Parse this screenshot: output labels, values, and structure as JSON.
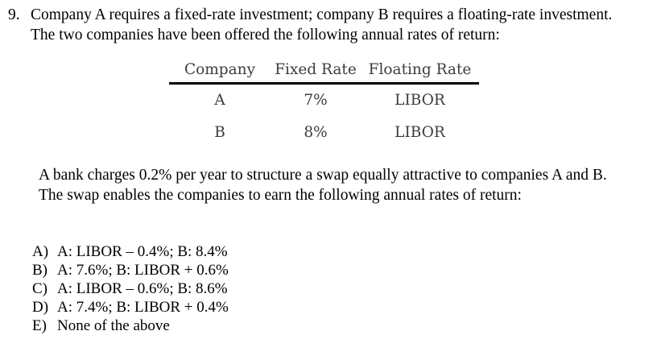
{
  "question": {
    "number": "9.",
    "intro_lines": [
      "Company A requires a fixed-rate investment; company B requires a floating-rate investment.",
      "The two companies have been offered the following annual rates of return:"
    ]
  },
  "rates_table": {
    "headers": [
      "Company",
      "Fixed Rate",
      "Floating Rate"
    ],
    "rows": [
      [
        "A",
        "7%",
        "LIBOR"
      ],
      [
        "B",
        "8%",
        "LIBOR"
      ]
    ],
    "text_color": "#3d3d42",
    "rule_color": "#000000"
  },
  "swap_paragraph": {
    "lines": [
      "A bank charges 0.2% per year to structure a swap equally attractive to companies A and B.",
      "The swap enables the companies to earn the following annual rates of return:"
    ]
  },
  "options": [
    {
      "letter": "A)",
      "text": "A: LIBOR – 0.4%; B: 8.4%"
    },
    {
      "letter": "B)",
      "text": "A: 7.6%; B: LIBOR + 0.6%"
    },
    {
      "letter": "C)",
      "text": "A: LIBOR – 0.6%; B: 8.6%"
    },
    {
      "letter": "D)",
      "text": "A: 7.4%; B: LIBOR + 0.4%"
    },
    {
      "letter": "E)",
      "text": "None of the above"
    }
  ]
}
